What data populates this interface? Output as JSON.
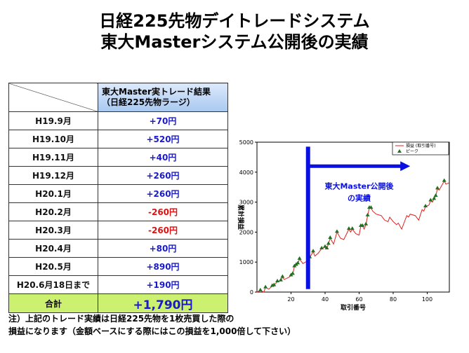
{
  "title": {
    "line1": "日経225先物デイトレードシステム",
    "line2": "東大Masterシステム公開後の実績"
  },
  "table": {
    "header": "東大Master実トレード結果（日経225先物ラージ）",
    "rows": [
      {
        "label": "H19.9月",
        "value": "+70円",
        "neg": false
      },
      {
        "label": "H19.10月",
        "value": "+520円",
        "neg": false
      },
      {
        "label": "H19.11月",
        "value": "+40円",
        "neg": false
      },
      {
        "label": "H19.12月",
        "value": "+260円",
        "neg": false
      },
      {
        "label": "H20.1月",
        "value": "+260円",
        "neg": false
      },
      {
        "label": "H20.2月",
        "value": "-260円",
        "neg": true
      },
      {
        "label": "H20.3月",
        "value": "-260円",
        "neg": true
      },
      {
        "label": "H20.4月",
        "value": "+80円",
        "neg": false
      },
      {
        "label": "H20.5月",
        "value": "+890円",
        "neg": false
      },
      {
        "label": "H20.6月18日まで",
        "value": "+190円",
        "neg": false
      }
    ],
    "total_label": "合計",
    "total_value": "+1,790円"
  },
  "notes": [
    "注）上記のトレード実績は日経225先物を1枚売買した際の",
    "損益になります（金額ベースにする際にはこの損益を1,000倍して下さい）"
  ],
  "chart_data": {
    "type": "line",
    "xlabel": "取引番号",
    "ylabel": "累計損益",
    "xlim": [
      0,
      113
    ],
    "ylim": [
      0,
      5000
    ],
    "xticks": [
      20,
      40,
      60,
      80,
      100
    ],
    "yticks": [
      0,
      1000,
      2000,
      3000,
      4000,
      5000
    ],
    "legend": [
      "損益 (取引番号)",
      "ピーク"
    ],
    "legend_position": "top-right",
    "annotation": "東大Master公開後の実績",
    "annotation_start_x": 30,
    "arrow_end_x": 90,
    "line_color": "#e02020",
    "peak_color": "#207020",
    "annot_color": "#0a10e0",
    "x": [
      0,
      2,
      4,
      5,
      7,
      9,
      10,
      12,
      14,
      15,
      16,
      19,
      20,
      21,
      22,
      23,
      24,
      25,
      27,
      30,
      31,
      33,
      34,
      36,
      38,
      40,
      41,
      42,
      43,
      45,
      47,
      49,
      51,
      54,
      55,
      56,
      58,
      60,
      61,
      62,
      63,
      64,
      65,
      66,
      67,
      68,
      70,
      73,
      75,
      77,
      78,
      80,
      82,
      83,
      85,
      88,
      89,
      90,
      93,
      95,
      97,
      98,
      99,
      101,
      102,
      103,
      104,
      105,
      106,
      107,
      109,
      110,
      111,
      113
    ],
    "y": [
      0,
      50,
      0,
      150,
      100,
      200,
      220,
      350,
      380,
      500,
      420,
      500,
      550,
      600,
      850,
      900,
      950,
      1100,
      950,
      1050,
      1150,
      1350,
      1200,
      1300,
      1450,
      1500,
      1450,
      1600,
      1800,
      1600,
      2000,
      1800,
      1750,
      2100,
      2000,
      2100,
      1950,
      1900,
      2200,
      2200,
      2100,
      2250,
      2550,
      2800,
      2800,
      2700,
      2600,
      2550,
      2400,
      2350,
      2500,
      2350,
      2250,
      2300,
      2100,
      2550,
      2500,
      2600,
      2550,
      2400,
      2750,
      2700,
      2850,
      2900,
      3050,
      3000,
      3100,
      3200,
      3450,
      3400,
      3600,
      3700,
      3600,
      3650
    ],
    "peaks_x": [
      2,
      5,
      9,
      10,
      12,
      14,
      15,
      20,
      21,
      22,
      23,
      24,
      25,
      31,
      33,
      38,
      40,
      41,
      42,
      43,
      47,
      54,
      56,
      61,
      62,
      64,
      65,
      66,
      67,
      99,
      102,
      104,
      105,
      106,
      110
    ],
    "peaks_y": [
      50,
      150,
      200,
      220,
      350,
      380,
      500,
      550,
      600,
      850,
      900,
      950,
      1100,
      1150,
      1350,
      1450,
      1500,
      1450,
      1600,
      1800,
      2000,
      2100,
      2100,
      2200,
      2200,
      2250,
      2550,
      2800,
      2800,
      2850,
      3050,
      3100,
      3200,
      3450,
      3700
    ]
  }
}
